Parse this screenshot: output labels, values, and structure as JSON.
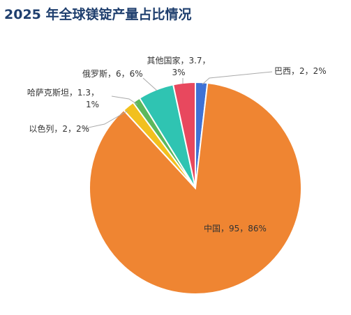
{
  "chart_data": {
    "type": "pie",
    "title": "2025 年全球镁锭产量占比情况",
    "values": [
      2,
      95,
      2,
      1.3,
      6,
      3.7
    ],
    "value_labels": [
      "巴西，2，2%",
      "中国，95，86%",
      "以色列，2，2%",
      "哈萨克斯坦，1.3，1%",
      "俄罗斯，6，6%",
      "其他国家，3.7，3%"
    ],
    "colors": [
      "#3f72d6",
      "#ef8532",
      "#f2c01e",
      "#5cb85c",
      "#2fc4b2",
      "#e8485e"
    ]
  }
}
